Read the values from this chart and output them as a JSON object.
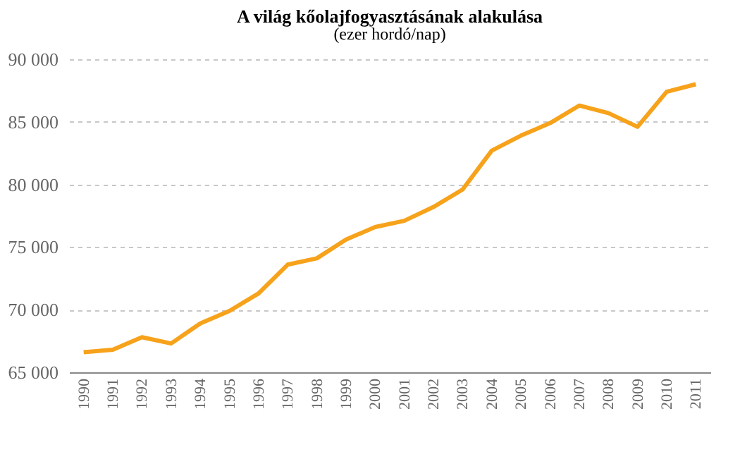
{
  "chart_data": {
    "type": "line",
    "title": "A világ kőolajfogyasztásának alakulása",
    "subtitle": "(ezer hordó/nap)",
    "categories": [
      "1990",
      "1991",
      "1992",
      "1993",
      "1994",
      "1995",
      "1996",
      "1997",
      "1998",
      "1999",
      "2000",
      "2001",
      "2002",
      "2003",
      "2004",
      "2005",
      "2006",
      "2007",
      "2008",
      "2009",
      "2010",
      "2011"
    ],
    "series": [
      {
        "color": "#f7a21b",
        "values": [
          66600,
          66800,
          67800,
          67300,
          68900,
          69900,
          71300,
          73600,
          74100,
          75600,
          76600,
          77100,
          78200,
          79600,
          82700,
          83900,
          84900,
          86300,
          85700,
          84600,
          87400,
          88000
        ]
      }
    ],
    "ylim": [
      65000,
      90000
    ],
    "yticks": [
      {
        "value": 65000,
        "label": "65 000"
      },
      {
        "value": 70000,
        "label": "70 000"
      },
      {
        "value": 75000,
        "label": "75 000"
      },
      {
        "value": 80000,
        "label": "80 000"
      },
      {
        "value": 85000,
        "label": "85 000"
      },
      {
        "value": 90000,
        "label": "90 000"
      }
    ],
    "grid": "y",
    "marker": "none",
    "line_style": "solid"
  }
}
